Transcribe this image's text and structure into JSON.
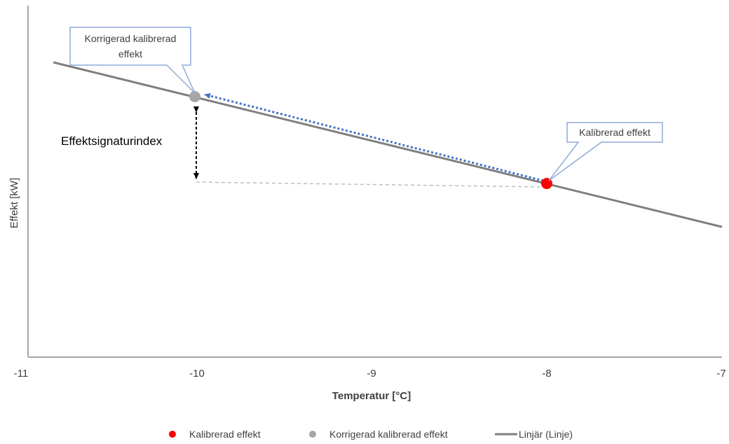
{
  "chart_data": {
    "type": "scatter",
    "xlabel": "Temperatur [°C]",
    "ylabel": "Effekt [kW]",
    "xlim": [
      -11,
      -7
    ],
    "x_ticks": [
      "-11",
      "-10",
      "-9",
      "-8",
      "-7"
    ],
    "y_ticks_shown": false,
    "grid": false,
    "legend_position": "bottom",
    "series": [
      {
        "name": "Kalibrerad effekt",
        "type": "scatter",
        "color": "#ff0000",
        "x": [
          -8
        ],
        "label": "Kalibrerad effekt"
      },
      {
        "name": "Korrigerad kalibrerad effekt",
        "type": "scatter",
        "color": "#a6a6a6",
        "x": [
          -10
        ],
        "label": "Korrigerad kalibrerad effekt"
      },
      {
        "name": "Linjär (Linje)",
        "type": "line",
        "color": "#7f7f7f",
        "x": [
          -10.8,
          -7
        ]
      }
    ],
    "annotations": {
      "index_label": "Effektsignaturindex",
      "callout_calibrated_lines": [
        "Kalibrerad effekt"
      ],
      "callout_corrected_lines": [
        "Korrigerad kalibrerad",
        "effekt"
      ]
    },
    "colors": {
      "axis": "#a6a6a6",
      "arrow": "#4472c4",
      "callout_border": "#8eaadb",
      "dashed_guide": "#bfbfbf"
    }
  }
}
